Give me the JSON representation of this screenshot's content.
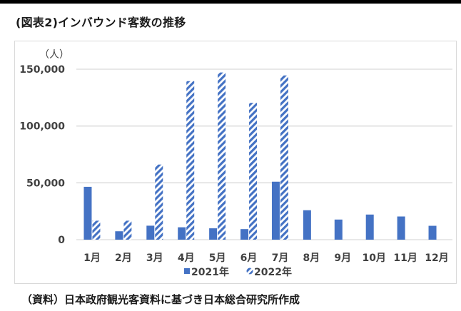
{
  "figure": {
    "title": "(図表2)インバウンド客数の推移",
    "source": "（資料）日本政府観光客資料に基づき日本総合研究所作成"
  },
  "colors": {
    "series_2021": "#4472C4",
    "series_2022_stripe": "#4472C4",
    "gridline": "#d9d9d9",
    "axis_text": "#404040",
    "border": "#d9d9d9"
  },
  "chart_data": {
    "type": "bar",
    "title": "インバウンド客数の推移",
    "xlabel": "",
    "ylabel": "（人）",
    "ylim": [
      0,
      150000
    ],
    "yticks": [
      0,
      50000,
      100000,
      150000
    ],
    "ytick_labels": [
      "0",
      "50,000",
      "100,000",
      "150,000"
    ],
    "grid": true,
    "legend_position": "bottom",
    "categories": [
      "1月",
      "2月",
      "3月",
      "4月",
      "5月",
      "6月",
      "7月",
      "8月",
      "9月",
      "10月",
      "11月",
      "12月"
    ],
    "series": [
      {
        "name": "2021年",
        "fill": "solid",
        "values": [
          46500,
          7400,
          12300,
          10900,
          10000,
          9300,
          51000,
          25900,
          17700,
          22100,
          20400,
          12200
        ]
      },
      {
        "name": "2022年",
        "fill": "diagonal-stripes",
        "values": [
          16700,
          16700,
          66100,
          139500,
          147100,
          120400,
          144500,
          null,
          null,
          null,
          null,
          null
        ]
      }
    ]
  }
}
